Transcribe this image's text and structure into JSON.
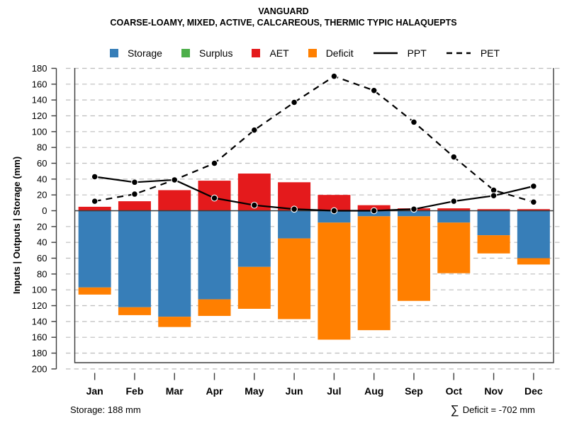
{
  "title": "VANGUARD",
  "subtitle": "COARSE-LOAMY, MIXED, ACTIVE, CALCAREOUS, THERMIC TYPIC HALAQUEPTS",
  "legend": [
    {
      "label": "Storage",
      "type": "square",
      "color": "#377EB8"
    },
    {
      "label": "Surplus",
      "type": "square",
      "color": "#4DAF4A"
    },
    {
      "label": "AET",
      "type": "square",
      "color": "#E41A1C"
    },
    {
      "label": "Deficit",
      "type": "square",
      "color": "#FF7F00"
    },
    {
      "label": "PPT",
      "type": "line",
      "style": "solid",
      "color": "#000000"
    },
    {
      "label": "PET",
      "type": "line",
      "style": "dashed",
      "color": "#000000"
    }
  ],
  "footer": {
    "storage_note": "Storage: 188 mm",
    "sigma_symbol": "∑",
    "deficit_note": "Deficit = -702 mm"
  },
  "chart_data": {
    "type": "bar",
    "subtype": "mirrored-stacked-bars-with-lines",
    "title": "VANGUARD",
    "subtitle": "COARSE-LOAMY, MIXED, ACTIVE, CALCAREOUS, THERMIC TYPIC HALAQUEPTS",
    "categories": [
      "Jan",
      "Feb",
      "Mar",
      "Apr",
      "May",
      "Jun",
      "Jul",
      "Aug",
      "Sep",
      "Oct",
      "Nov",
      "Dec"
    ],
    "series": [
      {
        "name": "Storage",
        "role": "bar-down",
        "color": "#377EB8",
        "values": [
          97,
          122,
          134,
          112,
          71,
          35,
          15,
          7,
          7,
          15,
          31,
          60
        ]
      },
      {
        "name": "Surplus",
        "role": "bar-up",
        "color": "#4DAF4A",
        "values": [
          0,
          0,
          0,
          0,
          0,
          0,
          0,
          0,
          0,
          0,
          0,
          0
        ]
      },
      {
        "name": "AET",
        "role": "bar-up",
        "color": "#E41A1C",
        "values": [
          5,
          12,
          26,
          38,
          47,
          36,
          20,
          7,
          3,
          3,
          2,
          2
        ]
      },
      {
        "name": "Deficit",
        "role": "bar-down",
        "color": "#FF7F00",
        "values": [
          9,
          10,
          13,
          21,
          53,
          102,
          148,
          144,
          107,
          64,
          23,
          8
        ]
      },
      {
        "name": "PPT",
        "role": "line-solid",
        "color": "#000000",
        "values": [
          43,
          36,
          39,
          16,
          7,
          2,
          0,
          0,
          2,
          12,
          19,
          31
        ]
      },
      {
        "name": "PET",
        "role": "line-dashed",
        "color": "#000000",
        "values": [
          12,
          21,
          39,
          60,
          102,
          137,
          170,
          152,
          112,
          68,
          26,
          11
        ]
      }
    ],
    "ylabel": "Inputs | Outputs | Storage   (mm)",
    "xlabel": "",
    "y_axis": {
      "top_max": 180,
      "bottom_max": 200,
      "step": 20,
      "tick_values": [
        180,
        160,
        140,
        120,
        100,
        80,
        60,
        40,
        20,
        0,
        -20,
        -40,
        -60,
        -80,
        -100,
        -120,
        -140,
        -160,
        -180,
        -200
      ],
      "note": "labels shown as absolute values; bottom half is mirrored (outputs)"
    },
    "grid": "dashed horizontal every 20 mm",
    "legend_position": "top",
    "annotations": {
      "storage_total": "Storage: 188 mm",
      "deficit_total": "∑ Deficit = -702 mm"
    }
  }
}
